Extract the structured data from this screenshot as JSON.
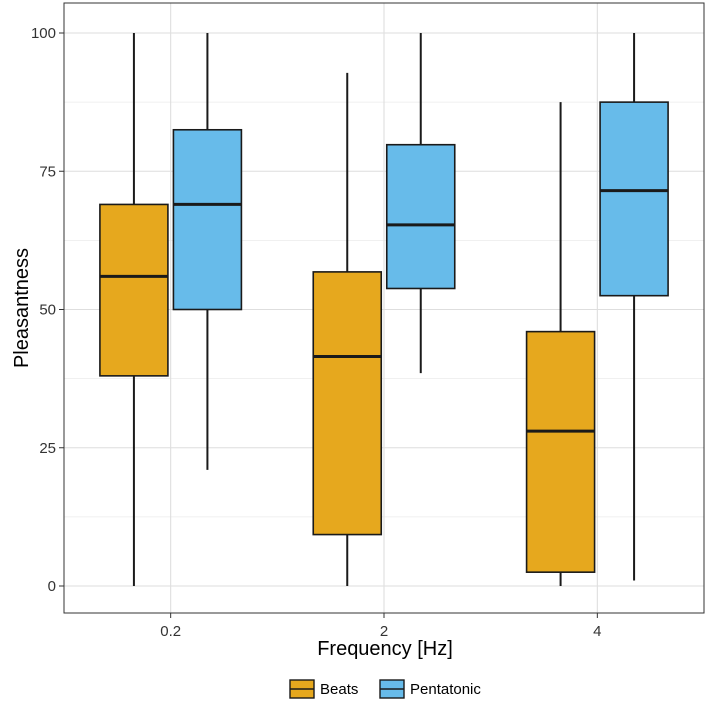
{
  "chart_data": {
    "type": "boxplot",
    "title": "",
    "xlabel": "Frequency [Hz]",
    "ylabel": "Pleasantness",
    "ylim": [
      0,
      100
    ],
    "yticks": [
      0,
      25,
      50,
      75,
      100
    ],
    "grid": true,
    "legend_position": "bottom",
    "categories": [
      "0.2",
      "2",
      "4"
    ],
    "series": [
      {
        "name": "Beats",
        "color": "#E6A81E",
        "boxes": [
          {
            "min": 0,
            "q1": 38,
            "median": 56,
            "q3": 69,
            "max": 100
          },
          {
            "min": 0,
            "q1": 9.3,
            "median": 41.5,
            "q3": 56.8,
            "max": 92.8
          },
          {
            "min": 0,
            "q1": 2.5,
            "median": 28,
            "q3": 46,
            "max": 87.5
          }
        ]
      },
      {
        "name": "Pentatonic",
        "color": "#67BBEA",
        "boxes": [
          {
            "min": 21,
            "q1": 50,
            "median": 69,
            "q3": 82.5,
            "max": 100
          },
          {
            "min": 38.5,
            "q1": 53.8,
            "median": 65.3,
            "q3": 79.8,
            "max": 100
          },
          {
            "min": 1,
            "q1": 52.5,
            "median": 71.5,
            "q3": 87.5,
            "max": 100
          }
        ]
      }
    ]
  }
}
